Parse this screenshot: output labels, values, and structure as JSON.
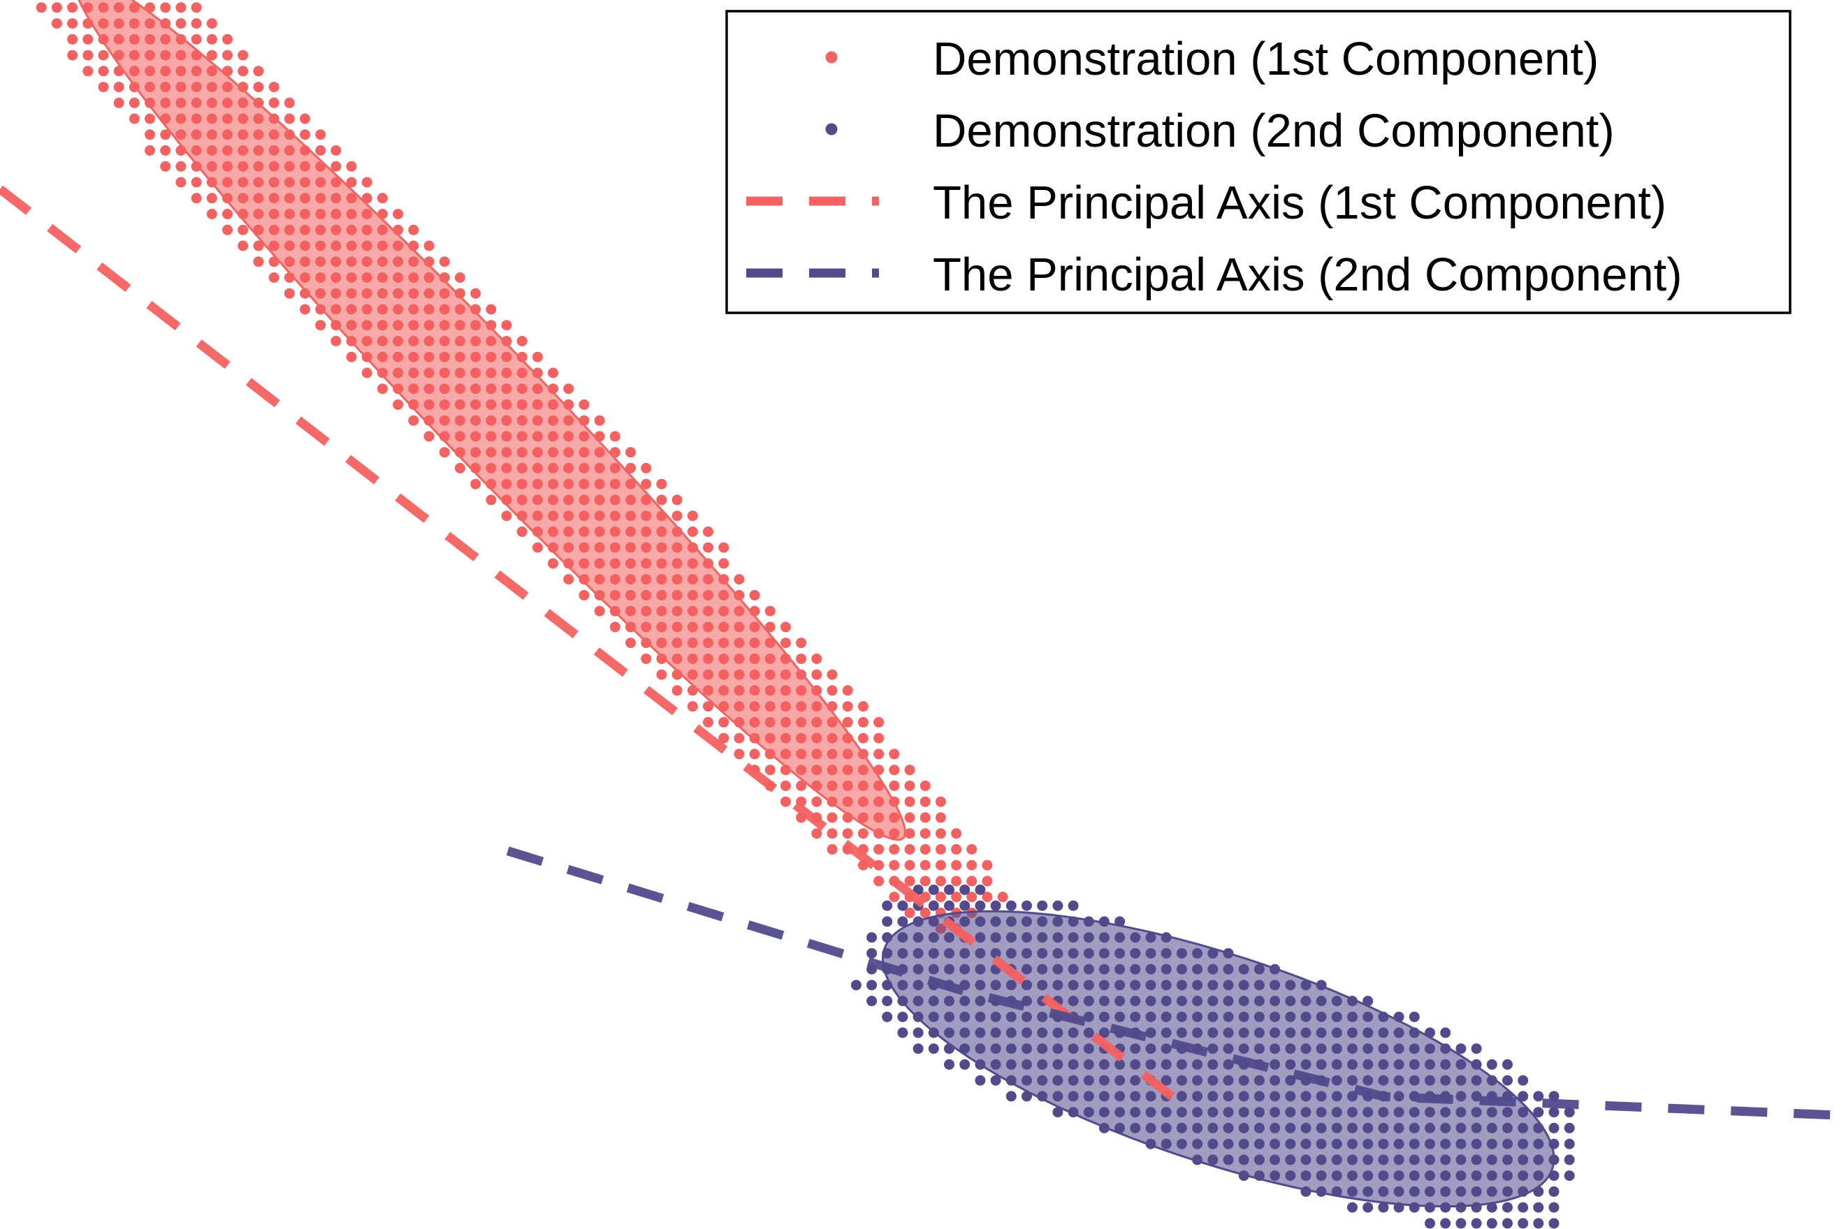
{
  "chart_data": {
    "type": "scatter",
    "title": "",
    "xlabel": "",
    "ylabel": "",
    "xlim": [
      -1.0,
      1.0
    ],
    "ylim": [
      -0.45,
      0.85
    ],
    "grid": false,
    "axes_visible": false,
    "legend": {
      "placement": "top-right",
      "entries": [
        {
          "label": "Demonstration (1st Component)",
          "marker": "dot",
          "color": "#f46161"
        },
        {
          "label": "Demonstration (2nd Component)",
          "marker": "dot",
          "color": "#534a8c"
        },
        {
          "label": "The Principal Axis (1st Component)",
          "marker": "dashed-line",
          "color": "#f46161"
        },
        {
          "label": "The Principal Axis (2nd Component)",
          "marker": "dashed-line",
          "color": "#534a8c"
        }
      ]
    },
    "series": [
      {
        "name": "Demonstration (1st Component)",
        "type": "scatter-grid",
        "color": "#f46161",
        "center": [
          -0.47,
          0.42
        ],
        "direction": [
          0.7,
          -0.714
        ],
        "half_length": 0.76,
        "half_width": 0.078,
        "grid_step": 0.0168
      },
      {
        "name": "Demonstration (2nd Component)",
        "type": "scatter-grid",
        "color": "#534a8c",
        "center": [
          0.32,
          -0.27
        ],
        "direction": [
          0.952,
          -0.305
        ],
        "half_length": 0.4,
        "half_width": 0.11,
        "grid_step": 0.0168
      },
      {
        "name": "The Principal Axis (1st Component)",
        "type": "line",
        "style": "dashed",
        "color": "#f46161",
        "x": [
          -1.0,
          0.27
        ],
        "y": [
          0.65,
          -0.31
        ]
      },
      {
        "name": "The Principal Axis (2nd Component)",
        "type": "line",
        "style": "dashed",
        "color": "#534a8c",
        "x": [
          -0.45,
          0.05,
          0.5,
          1.0
        ],
        "y": [
          -0.05,
          -0.2,
          -0.31,
          -0.33
        ]
      }
    ],
    "ellipses": [
      {
        "series": "Demonstration (1st Component)",
        "center": [
          -0.47,
          0.42
        ],
        "angle_deg": -45.5,
        "half_axes": [
          0.64,
          0.06
        ],
        "color": "#f46161",
        "fill_opacity": 0.55
      },
      {
        "series": "Demonstration (2nd Component)",
        "center": [
          0.32,
          -0.27
        ],
        "angle_deg": -17.8,
        "half_axes": [
          0.38,
          0.11
        ],
        "color": "#534a8c",
        "fill_opacity": 0.55
      }
    ]
  }
}
